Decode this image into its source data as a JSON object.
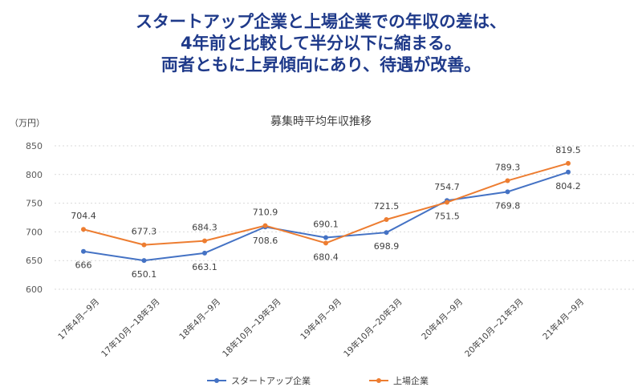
{
  "headline": {
    "line1": "スタートアップ企業と上場企業での年収の差は、",
    "line2": "4年前と比較して半分以下に縮まる。",
    "line3": "両者ともに上昇傾向にあり、待遇が改善。"
  },
  "chart_data": {
    "type": "line",
    "title": "募集時平均年収推移",
    "ylabel": "（万円）",
    "xlabel": "",
    "ylim": [
      600,
      850
    ],
    "yticks": [
      600,
      650,
      700,
      750,
      800,
      850
    ],
    "categories": [
      "17年4月~9月",
      "17年10月~18年3月",
      "18年4月~9月",
      "18年10月~19年3月",
      "19年4月~9月",
      "19年10月~20年3月",
      "20年4月~9月",
      "20年10月~21年3月",
      "21年4月~9月"
    ],
    "series": [
      {
        "name": "スタートアップ企業",
        "color": "#4472c4",
        "values": [
          666,
          650.1,
          663.1,
          708.6,
          690.1,
          698.9,
          754.7,
          769.8,
          804.2
        ],
        "labels": [
          "666",
          "650.1",
          "663.1",
          "708.6",
          "690.1",
          "698.9",
          "754.7",
          "769.8",
          "804.2"
        ]
      },
      {
        "name": "上場企業",
        "color": "#ed7d31",
        "values": [
          704.4,
          677.3,
          684.3,
          710.9,
          680.4,
          721.5,
          751.5,
          789.3,
          819.5
        ],
        "labels": [
          "704.4",
          "677.3",
          "684.3",
          "710.9",
          "680.4",
          "721.5",
          "751.5",
          "789.3",
          "819.5"
        ]
      }
    ],
    "grid": true,
    "legend_position": "bottom"
  }
}
